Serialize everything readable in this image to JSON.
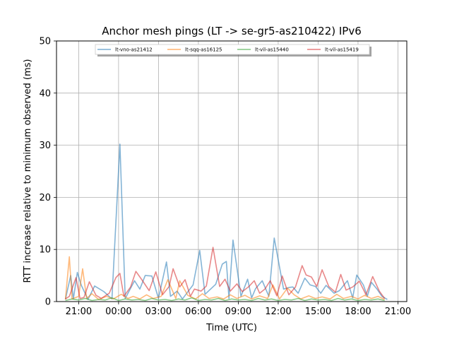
{
  "chart_data": {
    "type": "line",
    "title": "Anchor mesh pings (LT -> se-gr5-as210422) IPv6",
    "xlabel": "Time (UTC)",
    "ylabel": "RTT increase relative to minimum observed (ms)",
    "ylim": [
      0,
      50
    ],
    "xlim": [
      "19:20",
      "21:40 (+1d)"
    ],
    "x_tick_labels": [
      "21:00",
      "00:00",
      "03:00",
      "06:00",
      "09:00",
      "12:00",
      "15:00",
      "18:00",
      "21:00"
    ],
    "y_tick_labels": [
      "0",
      "10",
      "20",
      "30",
      "40",
      "50"
    ],
    "grid": true,
    "legend_placement": "top-center",
    "x_unit": "hours since 20:00",
    "series": [
      {
        "name": "lt-vno-as21412",
        "color": "#1f77b4",
        "x": [
          0.0,
          0.4,
          0.6,
          0.9,
          1.2,
          1.7,
          2.2,
          2.9,
          3.5,
          4.1,
          4.5,
          5.2,
          5.6,
          6.0,
          6.5,
          7.0,
          7.6,
          7.9,
          8.4,
          8.8,
          9.6,
          10.1,
          10.5,
          11.3,
          11.8,
          12.1,
          12.3,
          12.6,
          13.2,
          13.7,
          14.0,
          14.3,
          14.8,
          15.3,
          15.7,
          16.4,
          16.8,
          17.1,
          17.5,
          18.0,
          18.4,
          18.8,
          19.2,
          19.6,
          20.2,
          20.6,
          21.2,
          21.6,
          21.9,
          22.4,
          22.7,
          23.0,
          23.4,
          23.8,
          24.2
        ],
        "y": [
          0.4,
          5.0,
          0.5,
          5.6,
          3.1,
          0.4,
          3.0,
          1.9,
          0.5,
          30.2,
          0.6,
          4.0,
          2.4,
          5.0,
          4.9,
          0.6,
          7.6,
          1.0,
          2.0,
          0.5,
          3.2,
          9.8,
          1.4,
          3.3,
          7.2,
          7.7,
          0.6,
          11.8,
          1.0,
          4.3,
          0.7,
          2.5,
          4.0,
          1.0,
          12.2,
          2.4,
          2.7,
          2.8,
          1.6,
          4.5,
          3.2,
          2.9,
          1.6,
          3.1,
          1.6,
          2.1,
          4.0,
          0.7,
          5.1,
          3.2,
          1.0,
          3.7,
          2.5,
          1.0,
          0.4
        ]
      },
      {
        "name": "lt-sqq-as16125",
        "color": "#ff7f0e",
        "x": [
          0.0,
          0.3,
          0.5,
          1.0,
          1.3,
          1.6,
          2.0,
          2.5,
          3.1,
          3.6,
          4.2,
          4.7,
          5.1,
          5.6,
          6.1,
          6.6,
          7.2,
          7.7,
          8.3,
          8.6,
          9.2,
          9.8,
          10.3,
          10.8,
          11.4,
          11.9,
          12.4,
          12.9,
          13.5,
          14.0,
          14.6,
          15.2,
          15.6,
          16.1,
          16.7,
          17.2,
          17.7,
          18.3,
          18.8,
          19.3,
          19.9,
          20.4,
          20.9,
          21.5,
          22.0,
          22.5,
          23.0,
          23.5,
          24.0
        ],
        "y": [
          0.4,
          8.6,
          0.5,
          1.0,
          6.3,
          0.6,
          1.5,
          0.4,
          1.0,
          0.5,
          1.4,
          0.6,
          1.0,
          0.5,
          1.3,
          0.6,
          1.0,
          4.2,
          0.6,
          4.0,
          1.2,
          0.5,
          1.5,
          0.6,
          0.9,
          0.5,
          1.3,
          0.6,
          1.2,
          0.5,
          1.1,
          0.6,
          3.2,
          0.5,
          2.6,
          1.3,
          0.5,
          1.1,
          0.6,
          0.9,
          0.5,
          1.4,
          0.6,
          1.0,
          0.5,
          1.2,
          0.6,
          1.0,
          0.4
        ]
      },
      {
        "name": "lt-vil-as15440",
        "color": "#2ca02c",
        "x": [
          0.0,
          0.5,
          1.0,
          1.5,
          2.0,
          2.5,
          3.0,
          3.5,
          4.0,
          4.5,
          5.0,
          5.5,
          6.0,
          6.5,
          7.0,
          7.5,
          8.0,
          8.5,
          9.0,
          9.5,
          10.0,
          10.5,
          11.0,
          11.5,
          12.0,
          12.5,
          13.0,
          13.5,
          14.0,
          14.5,
          15.0,
          15.5,
          16.0,
          16.5,
          17.0,
          17.5,
          18.0,
          18.5,
          19.0,
          19.5,
          20.0,
          20.5,
          21.0,
          21.5,
          22.0,
          22.5,
          23.0,
          23.5,
          24.0
        ],
        "y": [
          0.2,
          0.5,
          0.3,
          0.6,
          0.2,
          0.4,
          0.3,
          0.7,
          0.2,
          0.5,
          0.3,
          0.4,
          0.2,
          0.6,
          0.3,
          0.4,
          0.2,
          0.5,
          0.3,
          0.7,
          0.2,
          0.4,
          0.3,
          0.6,
          0.2,
          0.5,
          0.3,
          0.4,
          0.2,
          0.6,
          0.3,
          0.5,
          0.2,
          0.4,
          0.3,
          0.6,
          0.2,
          0.5,
          0.3,
          0.4,
          0.2,
          0.6,
          0.3,
          0.5,
          0.2,
          0.4,
          0.3,
          0.5,
          0.2
        ]
      },
      {
        "name": "lt-vil-as15419",
        "color": "#d62728",
        "x": [
          0.0,
          0.3,
          0.8,
          1.1,
          1.4,
          1.8,
          2.3,
          2.7,
          3.3,
          3.8,
          4.1,
          4.4,
          4.9,
          5.3,
          5.8,
          6.3,
          6.8,
          7.3,
          7.8,
          8.1,
          8.6,
          9.0,
          9.4,
          9.7,
          10.2,
          10.6,
          11.1,
          11.6,
          12.0,
          12.4,
          12.9,
          13.3,
          13.8,
          14.2,
          14.6,
          15.0,
          15.4,
          15.9,
          16.3,
          16.8,
          17.3,
          17.8,
          18.1,
          18.5,
          18.9,
          19.3,
          19.8,
          20.3,
          20.7,
          21.1,
          21.6,
          22.1,
          22.6,
          23.1,
          23.6,
          24.0
        ],
        "y": [
          0.5,
          1.0,
          4.6,
          0.6,
          0.8,
          3.8,
          1.2,
          0.6,
          1.6,
          4.6,
          5.4,
          1.0,
          2.8,
          5.8,
          4.0,
          2.1,
          5.7,
          1.3,
          2.9,
          6.3,
          2.8,
          4.2,
          1.0,
          2.4,
          2.0,
          3.0,
          10.4,
          2.9,
          4.3,
          2.0,
          3.4,
          1.9,
          2.9,
          4.0,
          1.6,
          2.4,
          4.0,
          1.1,
          4.9,
          1.3,
          2.8,
          6.9,
          5.1,
          4.7,
          2.9,
          6.1,
          2.9,
          1.8,
          5.2,
          2.2,
          2.8,
          3.9,
          1.3,
          4.8,
          2.0,
          0.6
        ]
      }
    ]
  }
}
